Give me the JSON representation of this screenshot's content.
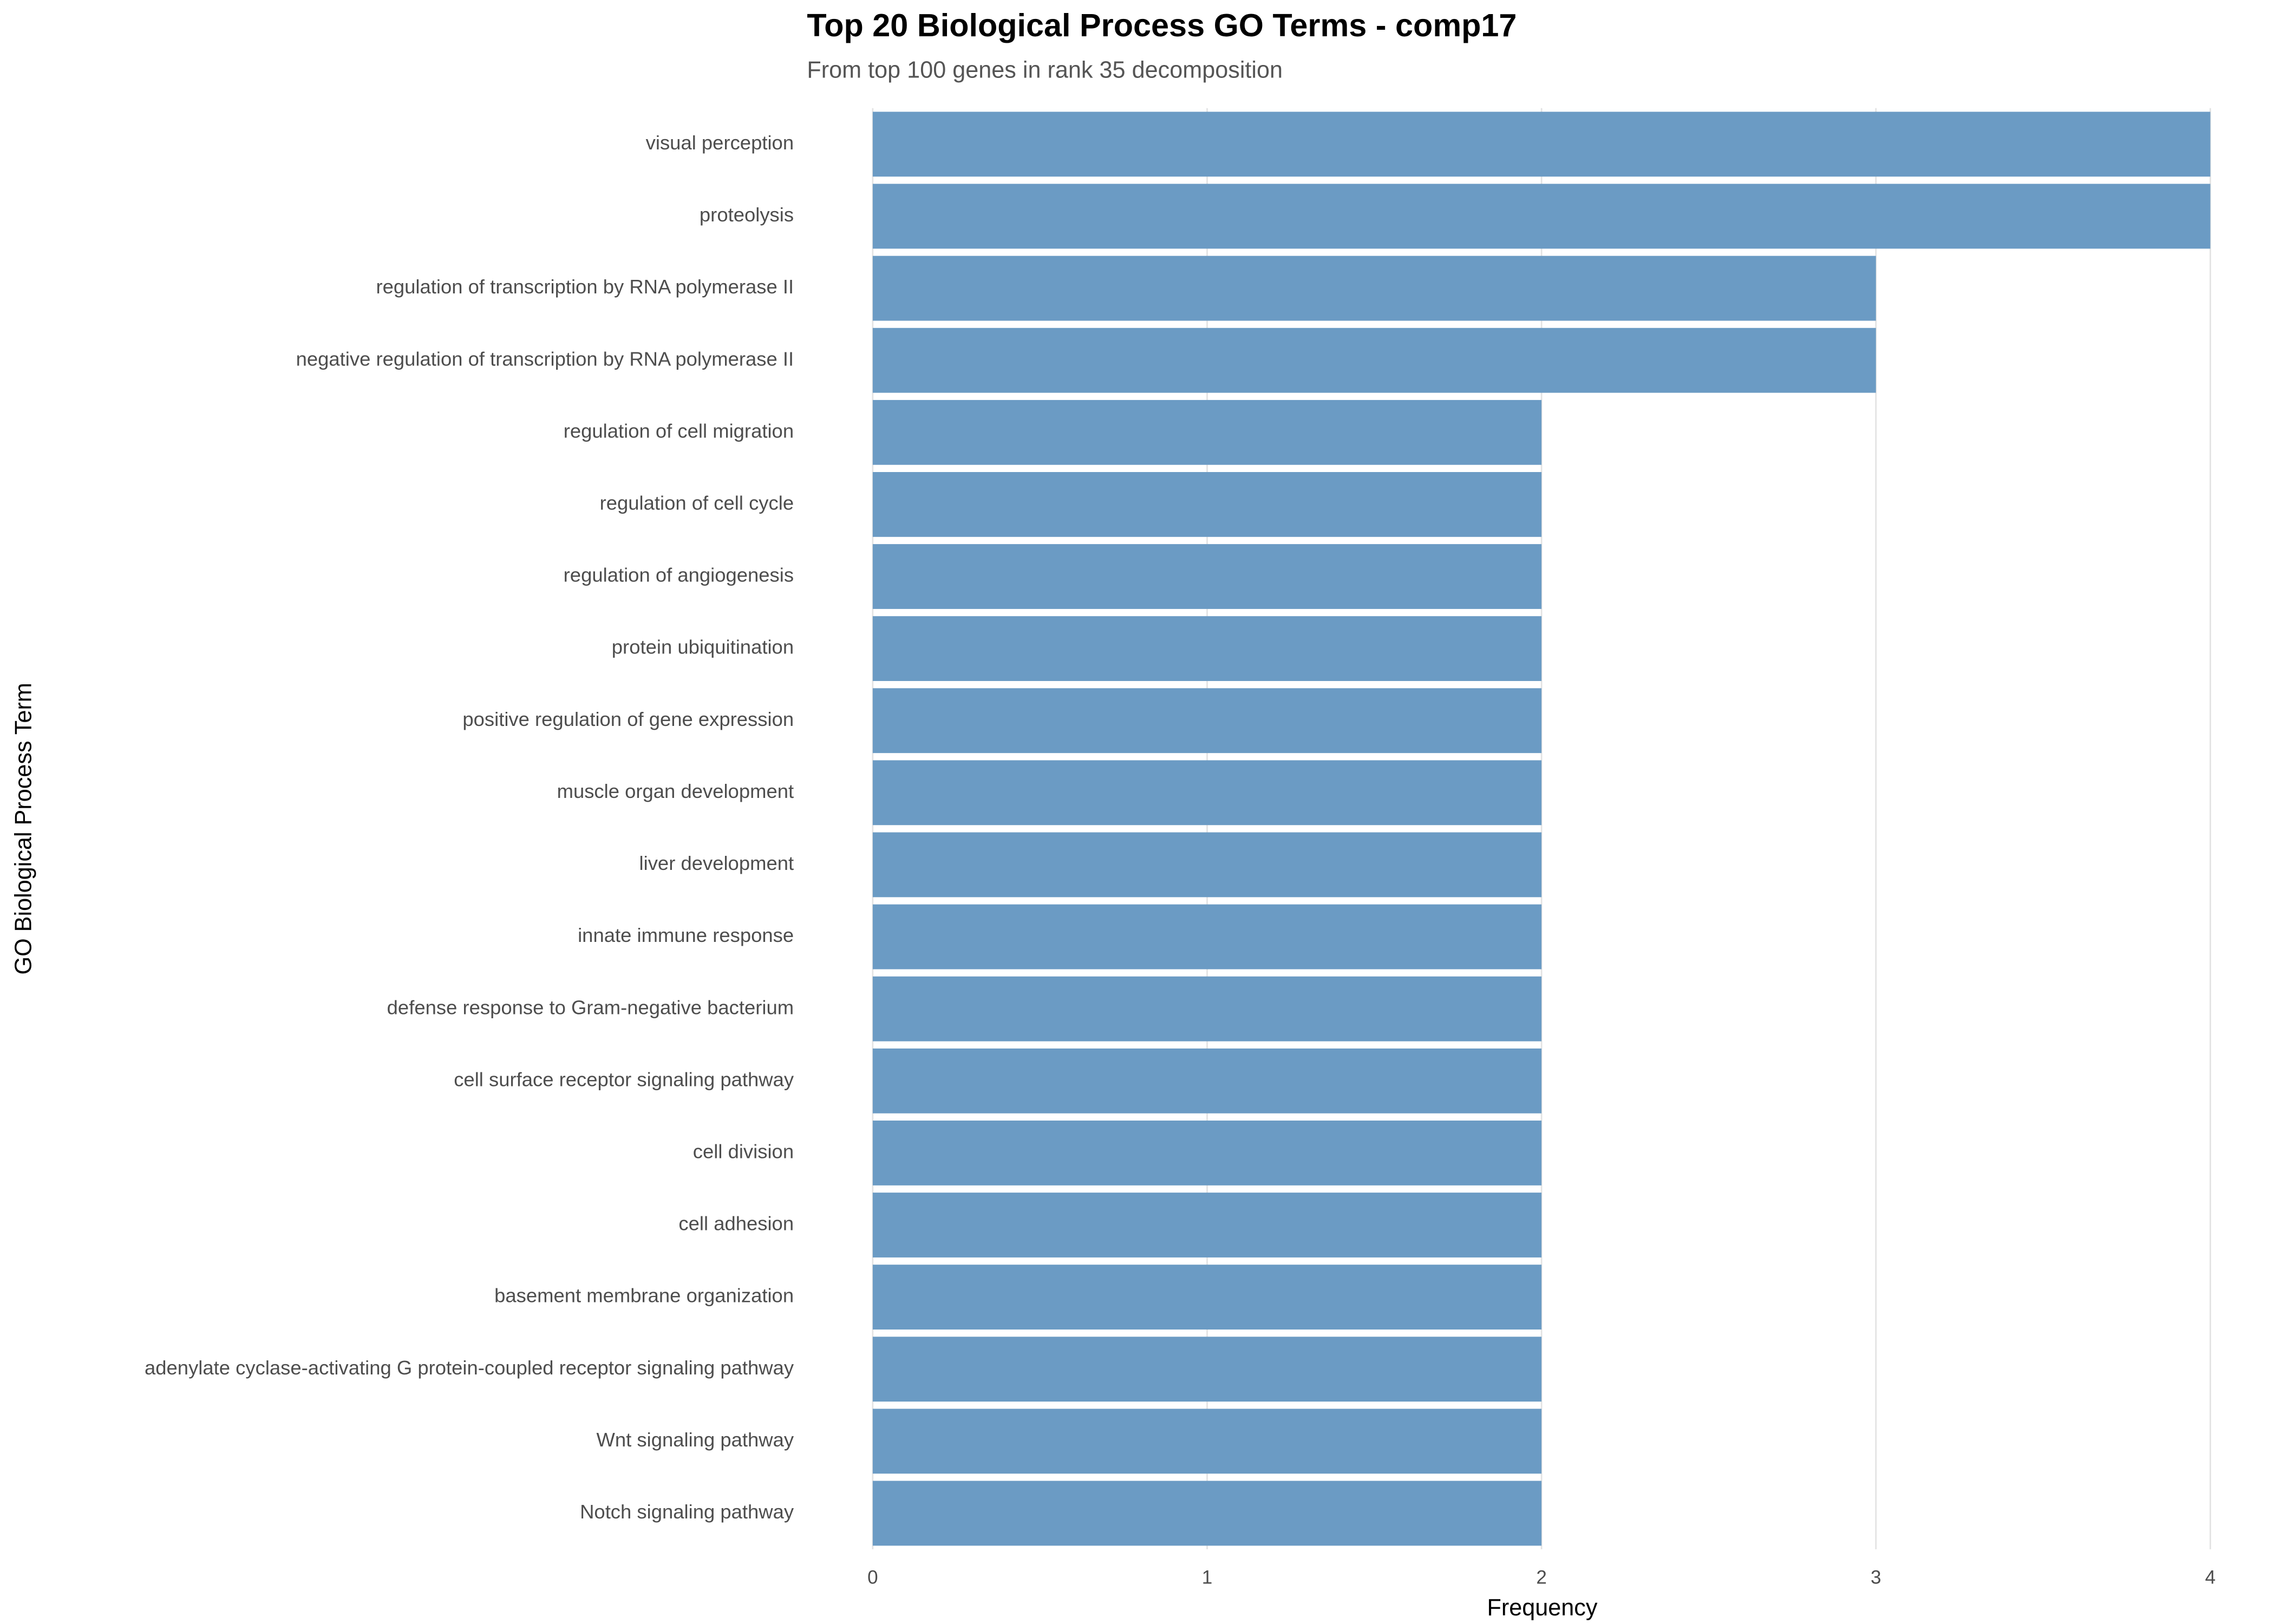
{
  "chart_data": {
    "type": "bar",
    "orientation": "horizontal",
    "title": "Top 20 Biological Process GO Terms - comp17",
    "subtitle": "From top 100 genes in rank 35 decomposition",
    "x_label": "Frequency",
    "y_label": "GO Biological Process Term",
    "categories": [
      "visual perception",
      "proteolysis",
      "regulation of transcription by RNA polymerase II",
      "negative regulation of transcription by RNA polymerase II",
      "regulation of cell migration",
      "regulation of cell cycle",
      "regulation of angiogenesis",
      "protein ubiquitination",
      "positive regulation of gene expression",
      "muscle organ development",
      "liver development",
      "innate immune response",
      "defense response to Gram-negative bacterium",
      "cell surface receptor signaling pathway",
      "cell division",
      "cell adhesion",
      "basement membrane organization",
      "adenylate cyclase-activating G protein-coupled receptor signaling pathway",
      "Wnt signaling pathway",
      "Notch signaling pathway"
    ],
    "values": [
      4,
      4,
      3,
      3,
      2,
      2,
      2,
      2,
      2,
      2,
      2,
      2,
      2,
      2,
      2,
      2,
      2,
      2,
      2,
      2
    ],
    "color": "#6b9bc4",
    "xlim": [
      0,
      4
    ],
    "xticks": [
      0,
      1,
      2,
      3,
      4
    ],
    "grid": true
  }
}
